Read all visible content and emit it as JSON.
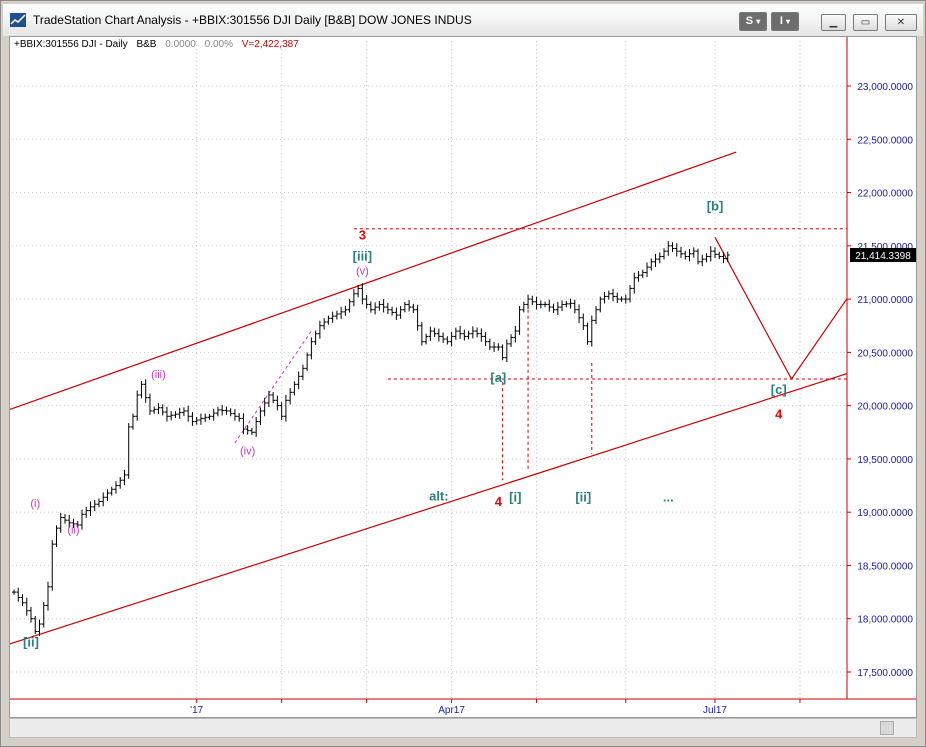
{
  "window": {
    "title": "TradeStation Chart Analysis - +BBIX:301556 DJI Daily [B&B] DOW JONES INDUS",
    "btn_s": "S",
    "btn_i": "I",
    "min_glyph": "▁",
    "restore_glyph": "▭",
    "close_glyph": "✕"
  },
  "colors": {
    "bars": "#000000",
    "channel": "#cc0000",
    "elliott_teal": "#2a7f7f",
    "elliott_magenta": "#cc33cc",
    "elliott_red": "#ee0000",
    "axis_labels": "#1a1aa0",
    "last_price_box": "#000000",
    "volume_text": "#cc0000"
  },
  "chart_data": {
    "type": "ohlc",
    "symbol_line": {
      "symbol": "+BBIX:301556 DJI - Daily",
      "bb": "B&B",
      "change": "0.0000",
      "change_pct": "0.00%",
      "volume": "V=2,422,387"
    },
    "last_price": "21,414.3398",
    "y_axis": {
      "ylim": [
        17300,
        23300
      ],
      "ticks": [
        {
          "v": 23000,
          "label": "23,000.0000"
        },
        {
          "v": 22500,
          "label": "22,500.0000"
        },
        {
          "v": 22000,
          "label": "22,000.0000"
        },
        {
          "v": 21500,
          "label": "21,500.0000"
        },
        {
          "v": 21000,
          "label": "21,000.0000"
        },
        {
          "v": 20500,
          "label": "20,500.0000"
        },
        {
          "v": 20000,
          "label": "20,000.0000"
        },
        {
          "v": 19500,
          "label": "19,500.0000"
        },
        {
          "v": 19000,
          "label": "19,000.0000"
        },
        {
          "v": 18500,
          "label": "18,500.0000"
        },
        {
          "v": 18000,
          "label": "18,000.0000"
        },
        {
          "v": 17500,
          "label": "17,500.0000"
        }
      ]
    },
    "x_axis": {
      "labels": [
        {
          "i": 43,
          "label": "'17"
        },
        {
          "i": 103,
          "label": "Apr17"
        },
        {
          "i": 165,
          "label": "Jul17"
        }
      ],
      "gridlines": [
        43,
        63,
        83,
        103,
        123,
        144,
        165,
        185
      ]
    },
    "close_path": [
      [
        0,
        18250
      ],
      [
        2,
        18150
      ],
      [
        4,
        18000
      ],
      [
        5,
        17880
      ],
      [
        6,
        17950
      ],
      [
        8,
        18300
      ],
      [
        9,
        18700
      ],
      [
        10,
        18850
      ],
      [
        11,
        18950
      ],
      [
        13,
        18900
      ],
      [
        15,
        18880
      ],
      [
        16,
        18980
      ],
      [
        18,
        19050
      ],
      [
        20,
        19100
      ],
      [
        22,
        19180
      ],
      [
        24,
        19250
      ],
      [
        26,
        19350
      ],
      [
        27,
        19800
      ],
      [
        28,
        19900
      ],
      [
        29,
        20100
      ],
      [
        30,
        20200
      ],
      [
        32,
        19950
      ],
      [
        34,
        19980
      ],
      [
        36,
        19900
      ],
      [
        38,
        19920
      ],
      [
        40,
        19950
      ],
      [
        42,
        19850
      ],
      [
        44,
        19880
      ],
      [
        46,
        19900
      ],
      [
        48,
        19960
      ],
      [
        50,
        19950
      ],
      [
        52,
        19900
      ],
      [
        53,
        19880
      ],
      [
        54,
        19780
      ],
      [
        56,
        19750
      ],
      [
        58,
        19950
      ],
      [
        60,
        20100
      ],
      [
        62,
        20000
      ],
      [
        63,
        19900
      ],
      [
        64,
        20050
      ],
      [
        66,
        20200
      ],
      [
        68,
        20350
      ],
      [
        70,
        20600
      ],
      [
        72,
        20750
      ],
      [
        74,
        20820
      ],
      [
        76,
        20860
      ],
      [
        78,
        20900
      ],
      [
        80,
        21050
      ],
      [
        81,
        21100
      ],
      [
        82,
        21000
      ],
      [
        84,
        20900
      ],
      [
        86,
        20950
      ],
      [
        88,
        20900
      ],
      [
        90,
        20850
      ],
      [
        92,
        20950
      ],
      [
        94,
        20900
      ],
      [
        96,
        20600
      ],
      [
        98,
        20700
      ],
      [
        100,
        20650
      ],
      [
        102,
        20600
      ],
      [
        104,
        20700
      ],
      [
        106,
        20650
      ],
      [
        108,
        20700
      ],
      [
        110,
        20650
      ],
      [
        112,
        20550
      ],
      [
        114,
        20550
      ],
      [
        115,
        20450
      ],
      [
        116,
        20580
      ],
      [
        118,
        20700
      ],
      [
        119,
        20900
      ],
      [
        121,
        21000
      ],
      [
        123,
        20950
      ],
      [
        125,
        20950
      ],
      [
        127,
        20900
      ],
      [
        129,
        20950
      ],
      [
        131,
        20960
      ],
      [
        132,
        20900
      ],
      [
        134,
        20750
      ],
      [
        135,
        20600
      ],
      [
        136,
        20800
      ],
      [
        138,
        21000
      ],
      [
        140,
        21050
      ],
      [
        142,
        21000
      ],
      [
        144,
        21000
      ],
      [
        146,
        21200
      ],
      [
        148,
        21250
      ],
      [
        150,
        21350
      ],
      [
        152,
        21400
      ],
      [
        154,
        21500
      ],
      [
        156,
        21450
      ],
      [
        158,
        21400
      ],
      [
        160,
        21450
      ],
      [
        161,
        21350
      ],
      [
        163,
        21400
      ],
      [
        164,
        21450
      ],
      [
        165,
        21420
      ],
      [
        167,
        21380
      ],
      [
        168,
        21414
      ]
    ],
    "price_scale": {
      "y_low": 17500,
      "px_low": 671,
      "y_high": 23000,
      "px_high": 85
    },
    "x_scale": {
      "i0": 0,
      "px0": 12,
      "i1": 165,
      "px1": 713
    },
    "channel_upper": [
      [
        -2,
        19950
      ],
      [
        170,
        22380
      ]
    ],
    "channel_lower": [
      [
        -2,
        17750
      ],
      [
        196,
        20300
      ]
    ],
    "projection": [
      [
        165,
        21580
      ],
      [
        183,
        20250
      ],
      [
        196,
        21000
      ]
    ],
    "ref_lines_dashed": {
      "horizontal": [
        [
          80,
          21660,
          196
        ],
        [
          88,
          20250,
          196
        ]
      ],
      "vertical": [
        [
          115,
          20220,
          19300
        ],
        [
          121,
          20900,
          19400
        ],
        [
          136,
          20400,
          19550
        ]
      ]
    },
    "wave_labels": [
      {
        "text": "3",
        "i": 82,
        "v": 21560,
        "color": "red",
        "bold": true
      },
      {
        "text": "[iii]",
        "i": 82,
        "v": 21360,
        "color": "teal",
        "bold": true
      },
      {
        "text": "(v)",
        "i": 82,
        "v": 21230,
        "color": "magenta",
        "bold": false
      },
      {
        "text": "(iii)",
        "i": 34,
        "v": 20260,
        "color": "magenta",
        "bold": false
      },
      {
        "text": "(iv)",
        "i": 55,
        "v": 19540,
        "color": "magenta",
        "bold": false
      },
      {
        "text": "(i)",
        "i": 5,
        "v": 19050,
        "color": "magenta",
        "bold": false
      },
      {
        "text": "(ii)",
        "i": 14,
        "v": 18800,
        "color": "magenta",
        "bold": false
      },
      {
        "text": "[ii]",
        "i": 4,
        "v": 17740,
        "color": "teal",
        "bold": true
      },
      {
        "text": "[a]",
        "i": 114,
        "v": 20220,
        "color": "teal",
        "bold": true
      },
      {
        "text": "4",
        "i": 114,
        "v": 19060,
        "color": "red",
        "bold": true
      },
      {
        "text": "alt:",
        "i": 100,
        "v": 19110,
        "color": "teal",
        "bold": true
      },
      {
        "text": "[i]",
        "i": 118,
        "v": 19100,
        "color": "teal",
        "bold": true
      },
      {
        "text": "[ii]",
        "i": 134,
        "v": 19100,
        "color": "teal",
        "bold": true
      },
      {
        "text": "...",
        "i": 154,
        "v": 19100,
        "color": "teal",
        "bold": true
      },
      {
        "text": "[b]",
        "i": 165,
        "v": 21830,
        "color": "teal",
        "bold": true
      },
      {
        "text": "[c]",
        "i": 180,
        "v": 20110,
        "color": "teal",
        "bold": true
      },
      {
        "text": "4",
        "i": 180,
        "v": 19880,
        "color": "red",
        "bold": true
      }
    ]
  }
}
